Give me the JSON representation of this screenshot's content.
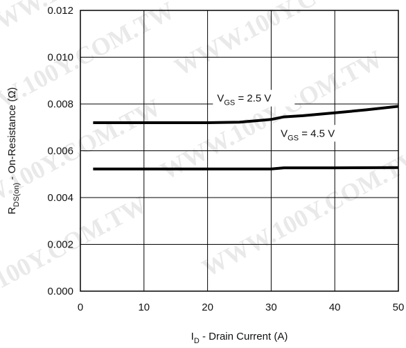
{
  "chart_data": {
    "type": "line",
    "xlabel_main": "I",
    "xlabel_sub": "D",
    "xlabel_rest": " - Drain Current (A)",
    "ylabel_main": "R",
    "ylabel_sub": "DS(on)",
    "ylabel_rest": " - On-Resistance (Ω)",
    "xlim": [
      0,
      50
    ],
    "ylim": [
      0,
      0.012
    ],
    "x_ticks": [
      0,
      10,
      20,
      30,
      40,
      50
    ],
    "x_tick_labels": [
      "0",
      "10",
      "20",
      "30",
      "40",
      "50"
    ],
    "y_ticks": [
      0,
      0.002,
      0.004,
      0.006,
      0.008,
      0.01,
      0.012
    ],
    "y_tick_labels": [
      "0.000",
      "0.002",
      "0.004",
      "0.006",
      "0.008",
      "0.010",
      "0.012"
    ],
    "grid": true,
    "watermark": "WWW.100Y.COM.TW",
    "series": [
      {
        "name": "VGS = 2.5 V",
        "label_main": "V",
        "label_sub": "GS",
        "label_rest": " = 2.5 V",
        "label_at": [
          21.5,
          0.0081
        ],
        "x": [
          2,
          10,
          20,
          25,
          30,
          32,
          35,
          40,
          45,
          50
        ],
        "y": [
          0.0072,
          0.0072,
          0.0072,
          0.00722,
          0.00734,
          0.00745,
          0.0075,
          0.00762,
          0.00775,
          0.0079
        ]
      },
      {
        "name": "VGS = 4.5 V",
        "label_main": "V",
        "label_sub": "GS",
        "label_rest": " = 4.5 V",
        "label_at": [
          31.5,
          0.0066
        ],
        "x": [
          2,
          10,
          20,
          30,
          32,
          40,
          50
        ],
        "y": [
          0.00522,
          0.00522,
          0.00522,
          0.00522,
          0.00527,
          0.00527,
          0.00528
        ]
      }
    ]
  }
}
